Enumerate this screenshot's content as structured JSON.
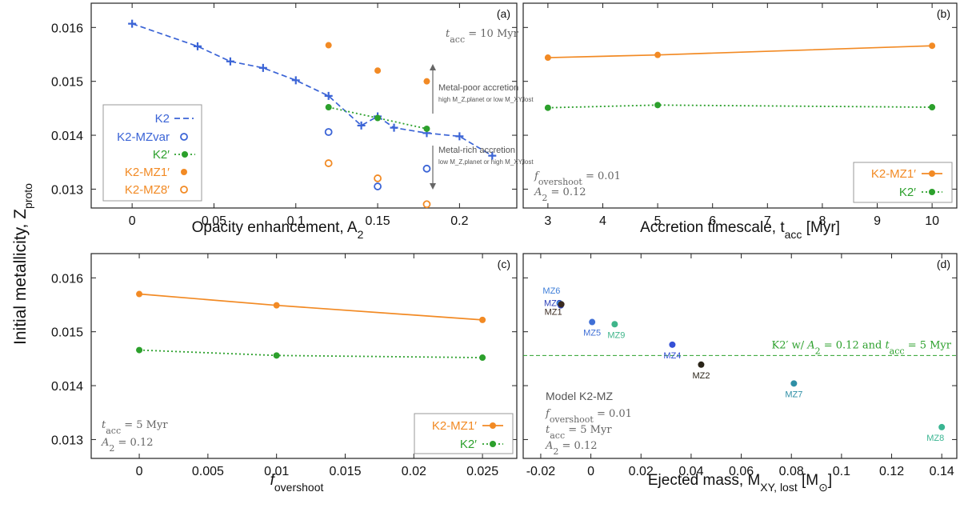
{
  "figure": {
    "ylabel": "Initial metallicity, Z",
    "ylabel_sub": "proto"
  },
  "colors": {
    "blue": "#3b64d6",
    "orange": "#f28a24",
    "green": "#2ca02c",
    "gray": "#555555"
  },
  "chart_data": [
    {
      "panel": "(a)",
      "type": "line",
      "xlabel": "Opacity enhancement, A",
      "xlabel_sub": "2",
      "xlim": [
        -0.025,
        0.235
      ],
      "ylim": [
        0.01265,
        0.01645
      ],
      "xticks": [
        "0",
        "0.05",
        "0.1",
        "0.15",
        "0.2"
      ],
      "xtick_values": [
        0,
        0.05,
        0.1,
        0.15,
        0.2
      ],
      "yticks": [
        "0.013",
        "0.014",
        "0.015",
        "0.016"
      ],
      "ytick_values": [
        0.013,
        0.014,
        0.015,
        0.016
      ],
      "annotation_tacc": "t_acc = 10 Myr",
      "arrow_up_label": "Metal-poor accretion",
      "arrow_up_sub": "high M_Z,planet or low M_XY,lost",
      "arrow_down_label": "Metal-rich accretion",
      "arrow_down_sub": "low M_Z,planet or high M_XY,lost",
      "series": [
        {
          "name": "K2",
          "style": "dashed-plus",
          "color": "blue",
          "x": [
            0,
            0.04,
            0.06,
            0.08,
            0.1,
            0.12,
            0.14,
            0.15,
            0.16,
            0.18,
            0.2,
            0.22
          ],
          "y": [
            0.01607,
            0.01565,
            0.01537,
            0.01525,
            0.01502,
            0.01473,
            0.01418,
            0.01435,
            0.01414,
            0.01404,
            0.01398,
            0.01362
          ]
        },
        {
          "name": "K2-MZvar",
          "style": "open-circle",
          "color": "blue",
          "x": [
            0.12,
            0.15,
            0.18
          ],
          "y": [
            0.01406,
            0.01305,
            0.01338
          ]
        },
        {
          "name": "K2′",
          "style": "dotted-dot",
          "color": "green",
          "x": [
            0.12,
            0.15,
            0.18
          ],
          "y": [
            0.01452,
            0.01432,
            0.01412
          ]
        },
        {
          "name": "K2-MZ1′",
          "style": "filled-dot",
          "color": "orange",
          "x": [
            0.12,
            0.15,
            0.18
          ],
          "y": [
            0.01567,
            0.0152,
            0.015
          ]
        },
        {
          "name": "K2-MZ8′",
          "style": "open-circle",
          "color": "orange",
          "x": [
            0.12,
            0.15,
            0.18
          ],
          "y": [
            0.01348,
            0.0132,
            0.01272
          ]
        }
      ]
    },
    {
      "panel": "(b)",
      "type": "line",
      "xlabel": "Accretion timescale, t",
      "xlabel_sub": "acc",
      "xlabel_tail": " [Myr]",
      "xlim": [
        2.55,
        10.45
      ],
      "ylim": [
        0.01265,
        0.01645
      ],
      "xticks": [
        "3",
        "4",
        "5",
        "6",
        "7",
        "8",
        "9",
        "10"
      ],
      "xtick_values": [
        3,
        4,
        5,
        6,
        7,
        8,
        9,
        10
      ],
      "annotation_fov": "f_overshoot = 0.01",
      "annotation_a2": "A_2 = 0.12",
      "series": [
        {
          "name": "K2-MZ1′",
          "style": "solid-dot",
          "color": "orange",
          "x": [
            3,
            5,
            10
          ],
          "y": [
            0.01544,
            0.01549,
            0.01566
          ]
        },
        {
          "name": "K2′",
          "style": "dotted-dot",
          "color": "green",
          "x": [
            3,
            5,
            10
          ],
          "y": [
            0.01451,
            0.01456,
            0.01452
          ]
        }
      ]
    },
    {
      "panel": "(c)",
      "type": "line",
      "xlabel": "f",
      "xlabel_sub": "overshoot",
      "xlim": [
        -0.0035,
        0.0275
      ],
      "ylim": [
        0.01265,
        0.01645
      ],
      "xticks": [
        "0",
        "0.005",
        "0.01",
        "0.015",
        "0.02",
        "0.025"
      ],
      "xtick_values": [
        0,
        0.005,
        0.01,
        0.015,
        0.02,
        0.025
      ],
      "yticks": [
        "0.013",
        "0.014",
        "0.015",
        "0.016"
      ],
      "ytick_values": [
        0.013,
        0.014,
        0.015,
        0.016
      ],
      "annotation_tacc": "t_acc = 5 Myr",
      "annotation_a2": "A_2 = 0.12",
      "series": [
        {
          "name": "K2-MZ1′",
          "style": "solid-dot",
          "color": "orange",
          "x": [
            0,
            0.01,
            0.025
          ],
          "y": [
            0.0157,
            0.01549,
            0.01522
          ]
        },
        {
          "name": "K2′",
          "style": "dotted-dot",
          "color": "green",
          "x": [
            0,
            0.01,
            0.025
          ],
          "y": [
            0.01466,
            0.01456,
            0.01452
          ]
        }
      ]
    },
    {
      "panel": "(d)",
      "type": "scatter",
      "xlabel": "Ejected mass, M",
      "xlabel_sub": "XY, lost",
      "xlabel_tail": " [M",
      "xlim": [
        -0.027,
        0.146
      ],
      "ylim": [
        0.01265,
        0.01645
      ],
      "xticks": [
        "-0.02",
        "0",
        "0.02",
        "0.04",
        "0.06",
        "0.08",
        "0.1",
        "0.12",
        "0.14"
      ],
      "xtick_values": [
        -0.02,
        0,
        0.02,
        0.04,
        0.06,
        0.08,
        0.1,
        0.12,
        0.14
      ],
      "reference_line": {
        "y": 0.01456,
        "label": "K2′ w/ A_2 = 0.12 and t_acc = 5 Myr"
      },
      "model_title": "Model K2-MZ",
      "annotation_fov": "f_overshoot = 0.01",
      "annotation_tacc": "t_acc = 5 Myr",
      "annotation_a2": "A_2 = 0.12",
      "points": [
        {
          "name": "MZ6",
          "x": -0.0125,
          "y": 0.01553,
          "color": "#3f7fd9"
        },
        {
          "name": "MZ3",
          "x": -0.012,
          "y": 0.01549,
          "color": "#2b3fb8"
        },
        {
          "name": "MZ1",
          "x": -0.0118,
          "y": 0.01551,
          "color": "#3a2a1f"
        },
        {
          "name": "MZ5",
          "x": 0.0005,
          "y": 0.01518,
          "color": "#3f6fd6"
        },
        {
          "name": "MZ9",
          "x": 0.0095,
          "y": 0.01514,
          "color": "#3fb58a"
        },
        {
          "name": "MZ4",
          "x": 0.0325,
          "y": 0.01476,
          "color": "#3550d6"
        },
        {
          "name": "MZ2",
          "x": 0.044,
          "y": 0.01439,
          "color": "#2a2418"
        },
        {
          "name": "MZ7",
          "x": 0.081,
          "y": 0.01404,
          "color": "#2e8fa6"
        },
        {
          "name": "MZ8",
          "x": 0.14,
          "y": 0.01323,
          "color": "#3ab592"
        }
      ]
    }
  ]
}
